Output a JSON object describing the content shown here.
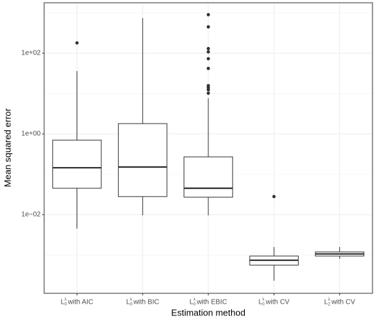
{
  "chart_data": {
    "type": "boxplot",
    "x_label": "Estimation method",
    "y_label": "Mean squared error",
    "log_y": true,
    "grid": true,
    "color": "#333333",
    "ylim": [
      0.000112,
      1780
    ],
    "yticks": [
      {
        "value": 100,
        "label": "1e+02"
      },
      {
        "value": 1,
        "label": "1e+00"
      },
      {
        "value": 0.01,
        "label": "1e−02"
      }
    ],
    "minor_grid": [
      1000,
      10,
      0.1,
      0.001
    ],
    "categories": [
      {
        "base": "L",
        "sup": "λ",
        "sub": "0",
        "text": "with AIC"
      },
      {
        "base": "L",
        "sup": "λ",
        "sub": "0",
        "text": "with BIC"
      },
      {
        "base": "L",
        "sup": "λ",
        "sub": "0",
        "text": "with EBIC"
      },
      {
        "base": "L",
        "sup": "λ",
        "sub": "0",
        "text": "with CV"
      },
      {
        "base": "L",
        "sup": "λ",
        "sub": "2",
        "text": "with CV"
      }
    ],
    "boxes": [
      {
        "whisker_low": 0.0045,
        "q1": 0.045,
        "median": 0.145,
        "q3": 0.7,
        "whisker_high": 36,
        "outliers": [
          180
        ]
      },
      {
        "whisker_low": 0.0096,
        "q1": 0.028,
        "median": 0.151,
        "q3": 1.8,
        "whisker_high": 745,
        "outliers": []
      },
      {
        "whisker_low": 0.0096,
        "q1": 0.027,
        "median": 0.045,
        "q3": 0.27,
        "whisker_high": 7.7,
        "outliers": [
          900,
          450,
          130,
          108,
          73,
          42,
          15.7,
          14,
          12.4,
          10.2
        ]
      },
      {
        "whisker_low": 0.00023,
        "q1": 0.00056,
        "median": 0.00074,
        "q3": 0.00094,
        "whisker_high": 0.00157,
        "outliers": [
          0.028
        ]
      },
      {
        "whisker_low": 0.0008,
        "q1": 0.00094,
        "median": 0.00106,
        "q3": 0.00119,
        "whisker_high": 0.00157,
        "outliers": []
      }
    ]
  }
}
